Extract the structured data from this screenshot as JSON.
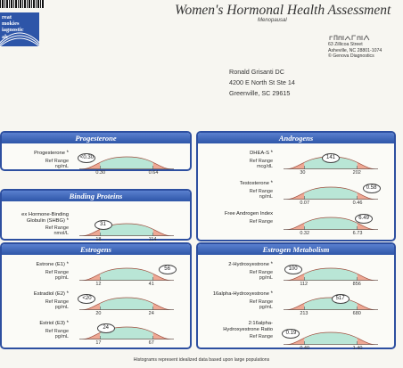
{
  "header": {
    "logo_text": "reat\nmokies\niagnostic\nab",
    "title": "Women's Hormonal Health Assessment",
    "subtitle": "Menopausal",
    "lab_address": [
      "63 Zillicoa Street",
      "Asheville, NC  28801-1074",
      "© Genova Diagnostics"
    ]
  },
  "recipient": [
    "Ronald Grisanti DC",
    "4200 E North St Ste 14",
    "Greenville, SC  29615"
  ],
  "colors": {
    "panel_border": "#2d4fa0",
    "normal_fill": "#b9e6d6",
    "abnormal_fill": "#eea894",
    "curve_line": "#a05040"
  },
  "panels": [
    {
      "id": "progesterone",
      "title": "Progesterone",
      "tests": [
        {
          "name": "Progesterone",
          "ref_label": "Ref Range",
          "unit": "ng/mL",
          "flag": "*",
          "result": "<0.30",
          "low": "0.30",
          "high": "0.64",
          "position": 0.08
        }
      ]
    },
    {
      "id": "binding",
      "title": "Binding Proteins",
      "tests": [
        {
          "name": "ex Hormone-Binding\nGlobulin (SHBG)",
          "ref_label": "Ref Range",
          "unit": "nmol/L",
          "flag": "*",
          "result": "31",
          "low": "18",
          "high": "114",
          "position": 0.25
        }
      ]
    },
    {
      "id": "androgens",
      "title": "Androgens",
      "tests": [
        {
          "name": "DHEA-S",
          "ref_label": "Ref Range",
          "unit": "mcg/dL",
          "flag": "*",
          "result": "141",
          "low": "30",
          "high": "202",
          "position": 0.5
        },
        {
          "name": "Testosterone",
          "ref_label": "Ref Range",
          "unit": "ng/mL",
          "flag": "*",
          "result": "0.58",
          "low": "0.07",
          "high": "0.46",
          "position": 0.93
        },
        {
          "name": "Free Androgen Index",
          "ref_label": "Ref Range",
          "unit": "",
          "flag": "",
          "result": "6.49",
          "low": "0.32",
          "high": "6.73",
          "position": 0.85
        }
      ]
    },
    {
      "id": "estrogens",
      "title": "Estrogens",
      "tests": [
        {
          "name": "Estrone (E1)",
          "ref_label": "Ref Range",
          "unit": "pg/mL",
          "flag": "*",
          "result": "56",
          "low": "12",
          "high": "41",
          "position": 0.93
        },
        {
          "name": "Estradiol (E2)",
          "ref_label": "Ref Range",
          "unit": "pg/mL",
          "flag": "*",
          "result": "<20",
          "low": "20",
          "high": "24",
          "position": 0.08
        },
        {
          "name": "Estriol (E3)",
          "ref_label": "Ref Range",
          "unit": "pg/mL",
          "flag": "*",
          "result": "24",
          "low": "17",
          "high": "67",
          "position": 0.28
        }
      ]
    },
    {
      "id": "estrogen-metabolism",
      "title": "Estrogen Metabolism",
      "tests": [
        {
          "name": "2-Hydroxyestrone",
          "ref_label": "Ref Range",
          "unit": "pg/mL",
          "flag": "*",
          "result": "100",
          "low": "112",
          "high": "856",
          "position": 0.1
        },
        {
          "name": "16alpha-Hydroxyestrone",
          "ref_label": "Ref Range",
          "unit": "pg/mL",
          "flag": "*",
          "result": "517",
          "low": "213",
          "high": "680",
          "position": 0.6
        },
        {
          "name": "2:16alpha-\nHydroxyestrone Ratio",
          "ref_label": "Ref Range",
          "unit": "",
          "flag": "",
          "result": "0.19",
          "low": "0.40",
          "high": "1.40",
          "position": 0.08
        }
      ]
    }
  ],
  "footer": "Histograms represent idealized data based upon large populations"
}
